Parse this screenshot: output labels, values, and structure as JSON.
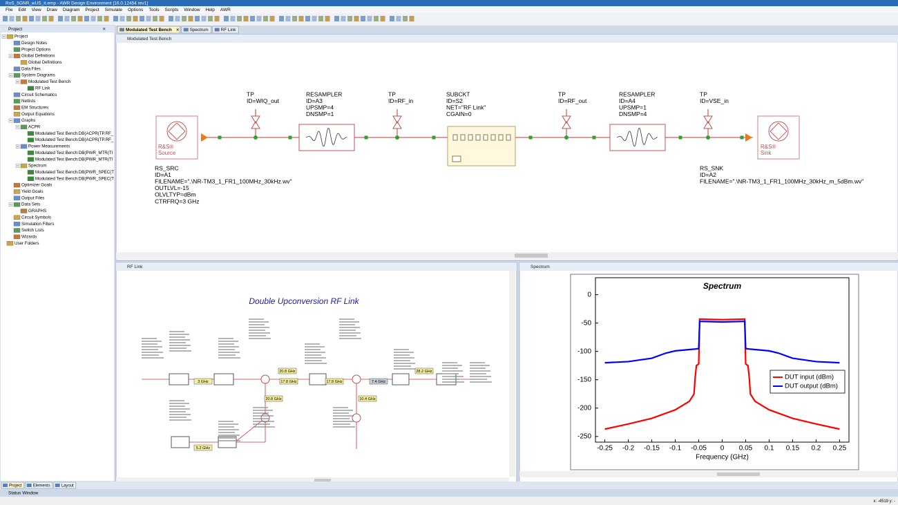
{
  "window_title": "RoS_5GNR_wUS_it.emp - AWR Design Environment [16.0.12454 rev1]",
  "menu": [
    "File",
    "Edit",
    "View",
    "Draw",
    "Diagram",
    "Project",
    "Simulate",
    "Options",
    "Tools",
    "Scripts",
    "Window",
    "Help",
    "AWR"
  ],
  "document_tabs": [
    "Modulated Test Bench",
    "Spectrum",
    "RF Link"
  ],
  "project_panel": {
    "title": "Project",
    "tree": [
      {
        "label": "Project",
        "children": [
          {
            "label": "Design Notes"
          },
          {
            "label": "Project Options"
          },
          {
            "label": "Global Definitions",
            "children": [
              {
                "label": "Global Definitions"
              }
            ]
          },
          {
            "label": "Data Files"
          },
          {
            "label": "System Diagrams",
            "children": [
              {
                "label": "Modulated Test Bench",
                "children": [
                  {
                    "label": "RF Link"
                  }
                ]
              }
            ]
          },
          {
            "label": "Circuit Schematics"
          },
          {
            "label": "Netlists"
          },
          {
            "label": "EM Structures"
          },
          {
            "label": "Output Equations"
          },
          {
            "label": "Graphs",
            "children": [
              {
                "label": "ACPR",
                "children": [
                  {
                    "label": "Modulated Test Bench:DB(ACPR(TP.RF_"
                  },
                  {
                    "label": "Modulated Test Bench:DB(ACPR(TP.RF_"
                  }
                ]
              },
              {
                "label": "Power Measurements",
                "children": [
                  {
                    "label": "Modulated Test Bench:DB(PWR_MTR(TI"
                  },
                  {
                    "label": "Modulated Test Bench:DB(PWR_MTR(TI"
                  }
                ]
              },
              {
                "label": "Spectrum",
                "children": [
                  {
                    "label": "Modulated Test Bench:DB(PWR_SPEC(T"
                  },
                  {
                    "label": "Modulated Test Bench:DB(PWR_SPEC(T"
                  }
                ]
              }
            ]
          },
          {
            "label": "Optimizer Goals"
          },
          {
            "label": "Yield Goals"
          },
          {
            "label": "Output Files"
          },
          {
            "label": "Data Sets",
            "children": [
              {
                "label": "GRAPHS"
              }
            ]
          },
          {
            "label": "Circuit Symbols"
          },
          {
            "label": "Simulation Filters"
          },
          {
            "label": "Switch Lists"
          },
          {
            "label": "Wizards"
          }
        ]
      },
      {
        "label": "User Folders"
      }
    ]
  },
  "bottom_tabs": [
    "Project",
    "Elements",
    "Layout"
  ],
  "status_window": "Status Window",
  "status_bar": "x: -4519  y: -",
  "schematic": {
    "title": "Modulated Test Bench",
    "blocks": [
      [
        "TP",
        "ID=WIQ_out"
      ],
      [
        "RESAMPLER",
        "ID=A3",
        "UPSMP=4",
        "DNSMP=1"
      ],
      [
        "TP",
        "ID=RF_in"
      ],
      [
        "SUBCKT",
        "ID=S2",
        "NET=\"RF Link\"",
        "CGAIN=0"
      ],
      [
        "TP",
        "ID=RF_out"
      ],
      [
        "RESAMPLER",
        "ID=A4",
        "UPSMP=1",
        "DNSMP=4"
      ],
      [
        "TP",
        "ID=VSE_in"
      ],
      [
        "RS_SRC",
        "ID=A1",
        "FILENAME=\".\\NR-TM3_1_FR1_100MHz_30kHz.wv\"",
        "OUTLVL=-15",
        "OLVLTYP=dBm",
        "CTRFRQ=3 GHz"
      ],
      [
        "RS_SNK",
        "ID=A2",
        "FILENAME=\".\\NR-TM3_1_FR1_100MHz_30kHz_m_5dBm.wv\""
      ]
    ],
    "source_label": [
      "R&S®",
      "Source"
    ],
    "sink_label": [
      "R&S®",
      "Sink"
    ]
  },
  "rf_link": {
    "title": "RF Link",
    "diagram_title": "Double Upconversion RF Link",
    "frequency_labels": [
      "3 GHz",
      "20.8 GHz",
      "17.8 GHz",
      "17.8 GHz",
      "7.4 GHz",
      "28.2 GHz",
      "20.8 GHz",
      "10.4 GHz",
      "5.2 GHz"
    ]
  },
  "spectrum_window": {
    "title": "Spectrum"
  },
  "chart_data": {
    "type": "line",
    "title": "Spectrum",
    "x_label": "Frequency (GHz)",
    "xlim": [
      -0.27,
      0.27
    ],
    "ylim": [
      -260,
      30
    ],
    "xticks": [
      -0.25,
      -0.2,
      -0.15,
      -0.1,
      -0.05,
      0,
      0.05,
      0.1,
      0.15,
      0.2,
      0.25
    ],
    "yticks": [
      0,
      -50,
      -100,
      -150,
      -200,
      -250
    ],
    "grid": false,
    "legend": "center right",
    "series": [
      {
        "name": "DUT input (dBm)",
        "color": "#ff0000",
        "x": [
          -0.25,
          -0.2,
          -0.15,
          -0.1,
          -0.07,
          -0.06,
          -0.058,
          -0.055,
          -0.05,
          -0.048,
          0,
          0.048,
          0.05,
          0.055,
          0.058,
          0.06,
          0.07,
          0.1,
          0.15,
          0.2,
          0.25
        ],
        "values": [
          -237,
          -228,
          -218,
          -203,
          -188,
          -175,
          -150,
          -125,
          -122,
          -43,
          -44,
          -43,
          -122,
          -125,
          -150,
          -175,
          -188,
          -203,
          -218,
          -228,
          -237
        ]
      },
      {
        "name": "DUT output (dBm)",
        "color": "#0000ff",
        "x": [
          -0.25,
          -0.2,
          -0.15,
          -0.12,
          -0.1,
          -0.06,
          -0.05,
          -0.048,
          0,
          0.048,
          0.05,
          0.06,
          0.1,
          0.12,
          0.15,
          0.2,
          0.25
        ],
        "values": [
          -120,
          -118,
          -112,
          -103,
          -99,
          -96,
          -95,
          -47,
          -48,
          -47,
          -95,
          -96,
          -99,
          -103,
          -112,
          -118,
          -120
        ]
      }
    ]
  }
}
